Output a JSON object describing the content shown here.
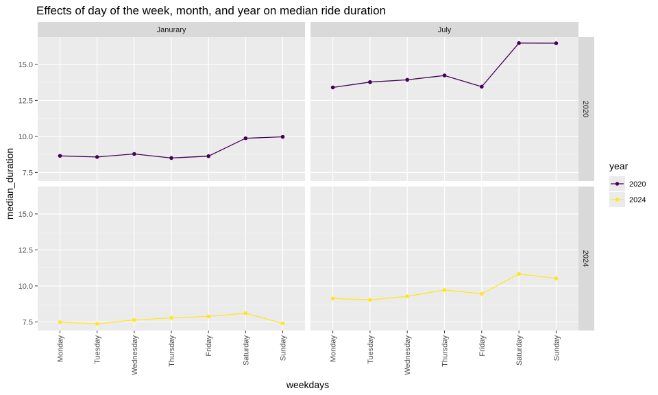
{
  "chart_data": {
    "type": "line",
    "title": "Effects of day of the week, month, and year on median ride duration",
    "xlabel": "weekdays",
    "ylabel": "median_duration",
    "categories": [
      "Monday",
      "Tuesday",
      "Wednesday",
      "Thursday",
      "Friday",
      "Saturday",
      "Sunday"
    ],
    "ylim": [
      6.9,
      16.9
    ],
    "yticks": [
      "7.5",
      "10.0",
      "12.5",
      "15.0"
    ],
    "ytick_values": [
      7.5,
      10.0,
      12.5,
      15.0
    ],
    "grid": true,
    "facet_columns": [
      "Janurary",
      "July"
    ],
    "facet_rows": [
      "2020",
      "2024"
    ],
    "legend": {
      "title": "year",
      "position": "right",
      "entries": [
        {
          "label": "2020",
          "color": "#440154"
        },
        {
          "label": "2024",
          "color": "#fde725"
        }
      ]
    },
    "panels": [
      {
        "month": "Janurary",
        "year": "2020",
        "color": "#440154",
        "values": [
          8.65,
          8.57,
          8.78,
          8.5,
          8.63,
          9.87,
          9.97
        ]
      },
      {
        "month": "July",
        "year": "2020",
        "color": "#440154",
        "values": [
          13.4,
          13.77,
          13.93,
          14.23,
          13.45,
          16.48,
          16.47
        ]
      },
      {
        "month": "Janurary",
        "year": "2024",
        "color": "#fde725",
        "values": [
          7.48,
          7.37,
          7.63,
          7.78,
          7.88,
          8.1,
          7.4
        ]
      },
      {
        "month": "July",
        "year": "2024",
        "color": "#fde725",
        "values": [
          9.13,
          9.03,
          9.27,
          9.72,
          9.45,
          10.83,
          10.52
        ]
      }
    ]
  }
}
